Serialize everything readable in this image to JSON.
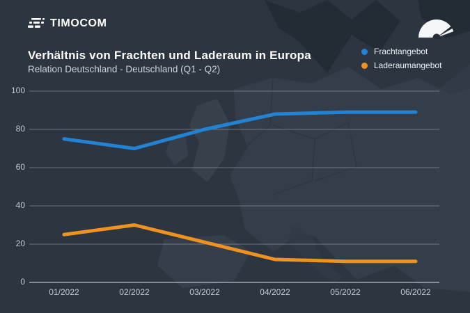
{
  "header": {
    "logo_text": "TIMOCOM"
  },
  "title": "Verhältnis von Frachten und Laderaum in Europa",
  "subtitle": "Relation Deutschland - Deutschland (Q1 - Q2)",
  "colors": {
    "background": "#2c3540",
    "frachtangebot_blue": "#2283d4",
    "laderaumangebot_orange": "#ef9220",
    "grid": "#c5ced8",
    "tick_text": "#c3cad2",
    "title_text": "#ffffff"
  },
  "chart_data": {
    "type": "line",
    "title": "Verhältnis von Frachten und Laderaum in Europa",
    "subtitle": "Relation Deutschland - Deutschland (Q1 - Q2)",
    "categories": [
      "01/2022",
      "02/2022",
      "03/2022",
      "04/2022",
      "05/2022",
      "06/2022"
    ],
    "series": [
      {
        "name": "Frachtangebot",
        "color": "#2283d4",
        "values": [
          75,
          70,
          80,
          88,
          89,
          89
        ]
      },
      {
        "name": "Laderaumangebot",
        "color": "#ef9220",
        "values": [
          25,
          30,
          21,
          12,
          11,
          11
        ]
      }
    ],
    "xlabel": "",
    "ylabel": "",
    "ylim": [
      0,
      100
    ],
    "yticks": [
      0,
      20,
      40,
      60,
      80,
      100
    ],
    "grid": true,
    "legend_position": "top-right"
  }
}
